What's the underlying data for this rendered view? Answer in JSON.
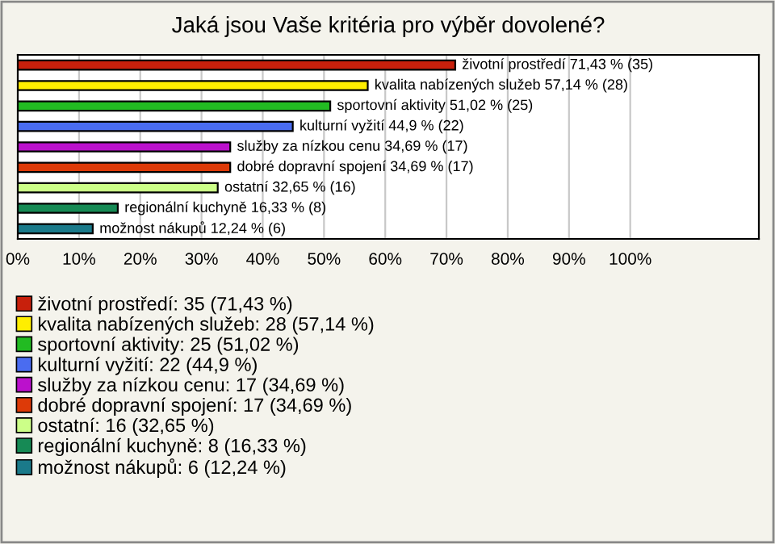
{
  "chart_data": {
    "type": "bar",
    "orientation": "horizontal",
    "title": "Jaká jsou Vaše kritéria pro výběr dovolené?",
    "categories": [
      null,
      null,
      null,
      null,
      null,
      null,
      null,
      null,
      null
    ],
    "series": [
      {
        "name": "životní prostředí: 35 (71,43 %)",
        "color": "#c8200c",
        "values": [
          71.43,
          null,
          null,
          null,
          null,
          null,
          null,
          null,
          null
        ],
        "value_labels": [
          "životní prostředí 71,43 % (35)",
          null,
          null,
          null,
          null,
          null,
          null,
          null,
          null
        ]
      },
      {
        "name": "kvalita nabízených služeb: 28 (57,14 %)",
        "color": "#ffee00",
        "values": [
          null,
          57.14,
          null,
          null,
          null,
          null,
          null,
          null,
          null
        ],
        "value_labels": [
          null,
          "kvalita nabízených služeb 57,14 % (28)",
          null,
          null,
          null,
          null,
          null,
          null,
          null
        ]
      },
      {
        "name": "sportovní aktivity: 25 (51,02 %)",
        "color": "#22bb22",
        "values": [
          null,
          null,
          51.02,
          null,
          null,
          null,
          null,
          null,
          null
        ],
        "value_labels": [
          null,
          null,
          "sportovní aktivity 51,02 % (25)",
          null,
          null,
          null,
          null,
          null,
          null
        ]
      },
      {
        "name": "kulturní vyžití: 22 (44,9 %)",
        "color": "#4a6cf0",
        "values": [
          null,
          null,
          null,
          44.9,
          null,
          null,
          null,
          null,
          null
        ],
        "value_labels": [
          null,
          null,
          null,
          "kulturní vyžití 44,9 % (22)",
          null,
          null,
          null,
          null,
          null
        ]
      },
      {
        "name": "služby za nízkou cenu: 17 (34,69 %)",
        "color": "#bb11cc",
        "values": [
          null,
          null,
          null,
          null,
          34.69,
          null,
          null,
          null,
          null
        ],
        "value_labels": [
          null,
          null,
          null,
          null,
          "služby za nízkou cenu 34,69 % (17)",
          null,
          null,
          null,
          null
        ]
      },
      {
        "name": "dobré dopravní spojení: 17 (34,69 %)",
        "color": "#dd3a08",
        "values": [
          null,
          null,
          null,
          null,
          null,
          34.69,
          null,
          null,
          null
        ],
        "value_labels": [
          null,
          null,
          null,
          null,
          null,
          "dobré dopravní spojení 34,69 % (17)",
          null,
          null,
          null
        ]
      },
      {
        "name": "ostatní: 16 (32,65 %)",
        "color": "#ccff88",
        "values": [
          null,
          null,
          null,
          null,
          null,
          null,
          32.65,
          null,
          null
        ],
        "value_labels": [
          null,
          null,
          null,
          null,
          null,
          null,
          "ostatní 32,65 % (16)",
          null,
          null
        ]
      },
      {
        "name": "regionální kuchyně: 8 (16,33 %)",
        "color": "#168a55",
        "values": [
          null,
          null,
          null,
          null,
          null,
          null,
          null,
          16.33,
          null
        ],
        "value_labels": [
          null,
          null,
          null,
          null,
          null,
          null,
          null,
          "regionální kuchyně 16,33 % (8)",
          null
        ]
      },
      {
        "name": "možnost nákupů: 6 (12,24 %)",
        "color": "#1a7a8a",
        "values": [
          null,
          null,
          null,
          null,
          null,
          null,
          null,
          null,
          12.24
        ],
        "value_labels": [
          null,
          null,
          null,
          null,
          null,
          null,
          null,
          null,
          "možnost nákupů 12,24 % (6)"
        ]
      }
    ],
    "xlim": [
      0,
      121
    ],
    "xticks": [
      {
        "value": 0,
        "label": "0%"
      },
      {
        "value": 10,
        "label": "10%"
      },
      {
        "value": 20,
        "label": "20%"
      },
      {
        "value": 30,
        "label": "30%"
      },
      {
        "value": 40,
        "label": "40%"
      },
      {
        "value": 50,
        "label": "50%"
      },
      {
        "value": 60,
        "label": "60%"
      },
      {
        "value": 70,
        "label": "70%"
      },
      {
        "value": 80,
        "label": "80%"
      },
      {
        "value": 90,
        "label": "90%"
      },
      {
        "value": 100,
        "label": "100%"
      }
    ],
    "grid": "x",
    "legend": "bottom",
    "tick_labels": "x"
  }
}
